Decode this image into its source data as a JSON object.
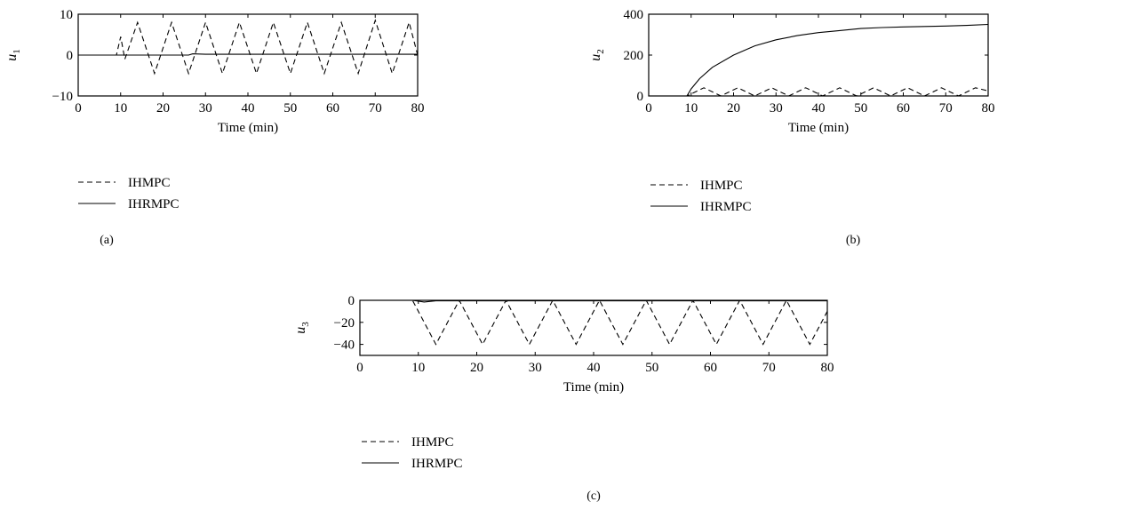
{
  "chart_data": [
    {
      "type": "line",
      "panel_label": "(a)",
      "xlabel": "Time (min)",
      "ylabel_base": "u",
      "ylabel_sub": "1",
      "xlim": [
        0,
        80
      ],
      "ylim": [
        -10,
        10
      ],
      "xticks": [
        0,
        10,
        20,
        30,
        40,
        50,
        60,
        70,
        80
      ],
      "yticks": [
        -10,
        0,
        10
      ],
      "legend_placement": "bottom-left",
      "series": [
        {
          "name": "IHMPC",
          "style": "dashed",
          "x": [
            0,
            8,
            9,
            10,
            11,
            14,
            18,
            22,
            26,
            30,
            34,
            38,
            42,
            46,
            50,
            54,
            58,
            62,
            66,
            70,
            74,
            78,
            80
          ],
          "y": [
            0,
            0,
            0,
            4.5,
            -1,
            8,
            -4.5,
            8,
            -4.5,
            8,
            -4.5,
            8,
            -4.5,
            8,
            -4.5,
            8,
            -4.5,
            8,
            -4.5,
            8.5,
            -4.5,
            8,
            0
          ]
        },
        {
          "name": "IHRMPC",
          "style": "solid",
          "x": [
            0,
            10,
            20,
            26,
            27,
            30,
            40,
            50,
            60,
            70,
            80
          ],
          "y": [
            0,
            0,
            0,
            0,
            0.3,
            0.2,
            0.2,
            0.2,
            0.2,
            0.2,
            0.2
          ]
        }
      ]
    },
    {
      "type": "line",
      "panel_label": "(b)",
      "xlabel": "Time (min)",
      "ylabel_base": "u",
      "ylabel_sub": "2",
      "xlim": [
        0,
        80
      ],
      "ylim": [
        0,
        400
      ],
      "xticks": [
        0,
        10,
        20,
        30,
        40,
        50,
        60,
        70,
        80
      ],
      "yticks": [
        0,
        200,
        400
      ],
      "legend_placement": "bottom-left",
      "series": [
        {
          "name": "IHMPC",
          "style": "dashed",
          "x": [
            0,
            9,
            13,
            17,
            21,
            25,
            29,
            33,
            37,
            41,
            45,
            49,
            53,
            57,
            61,
            65,
            69,
            73,
            77,
            80
          ],
          "y": [
            0,
            0,
            40,
            0,
            40,
            0,
            40,
            0,
            40,
            0,
            40,
            0,
            40,
            0,
            40,
            0,
            40,
            0,
            40,
            25
          ]
        },
        {
          "name": "IHRMPC",
          "style": "solid",
          "x": [
            0,
            9,
            10,
            12,
            15,
            20,
            25,
            30,
            35,
            40,
            45,
            50,
            55,
            60,
            65,
            70,
            75,
            80
          ],
          "y": [
            0,
            0,
            35,
            85,
            140,
            200,
            245,
            275,
            295,
            310,
            320,
            330,
            335,
            338,
            340,
            342,
            345,
            350
          ]
        }
      ]
    },
    {
      "type": "line",
      "panel_label": "(c)",
      "xlabel": "Time (min)",
      "ylabel_base": "u",
      "ylabel_sub": "3",
      "xlim": [
        0,
        80
      ],
      "ylim": [
        -50,
        0
      ],
      "xticks": [
        0,
        10,
        20,
        30,
        40,
        50,
        60,
        70,
        80
      ],
      "yticks": [
        -40,
        -20,
        0
      ],
      "legend_placement": "bottom-left",
      "series": [
        {
          "name": "IHMPC",
          "style": "dashed",
          "x": [
            0,
            9,
            13,
            17,
            21,
            25,
            29,
            33,
            37,
            41,
            45,
            49,
            53,
            57,
            61,
            65,
            69,
            73,
            77,
            80
          ],
          "y": [
            0,
            0,
            -40,
            0,
            -40,
            0,
            -40,
            0,
            -40,
            0,
            -40,
            0,
            -40,
            0,
            -40,
            0,
            -40,
            0,
            -40,
            -10
          ]
        },
        {
          "name": "IHRMPC",
          "style": "solid",
          "x": [
            0,
            9,
            11,
            13,
            20,
            30,
            40,
            50,
            60,
            70,
            80
          ],
          "y": [
            0,
            0,
            -1.5,
            -0.5,
            -0.5,
            -0.5,
            -0.5,
            -0.5,
            -0.5,
            -0.5,
            -0.5
          ]
        }
      ]
    }
  ]
}
